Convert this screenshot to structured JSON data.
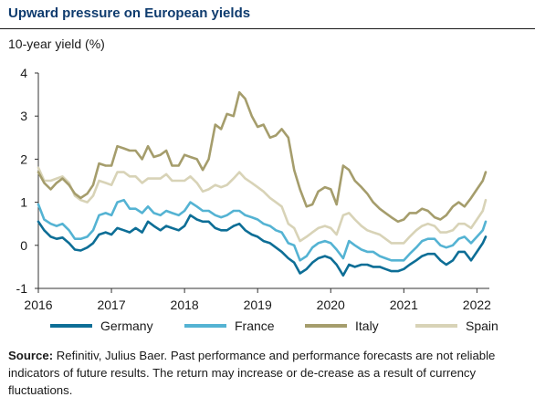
{
  "title": "Upward pressure on European yields",
  "source": {
    "label": "Source:",
    "text": " Refinitiv, Julius Baer. Past performance and performance forecasts are not reliable indicators of future results. The return may increase or de-crease as a result of currency fluctuations."
  },
  "chart_data": {
    "type": "line",
    "ylabel": "10-year yield (%)",
    "ylim": [
      -1,
      4
    ],
    "xlim": [
      2016.0,
      2022.17
    ],
    "xticks": [
      "2016",
      "2017",
      "2018",
      "2019",
      "2020",
      "2021",
      "2022"
    ],
    "yticks": [
      "4",
      "3",
      "2",
      "1",
      "0",
      "-1"
    ],
    "legend_position": "bottom",
    "grid": false,
    "series": [
      {
        "name": "Germany",
        "color": "#0d6e96",
        "x": [
          2016.0,
          2016.08,
          2016.17,
          2016.25,
          2016.33,
          2016.42,
          2016.5,
          2016.58,
          2016.67,
          2016.75,
          2016.83,
          2016.92,
          2017.0,
          2017.08,
          2017.17,
          2017.25,
          2017.33,
          2017.42,
          2017.5,
          2017.58,
          2017.67,
          2017.75,
          2017.83,
          2017.92,
          2018.0,
          2018.08,
          2018.17,
          2018.25,
          2018.33,
          2018.42,
          2018.5,
          2018.58,
          2018.67,
          2018.75,
          2018.83,
          2018.92,
          2019.0,
          2019.08,
          2019.17,
          2019.25,
          2019.33,
          2019.42,
          2019.5,
          2019.58,
          2019.67,
          2019.75,
          2019.83,
          2019.92,
          2020.0,
          2020.08,
          2020.17,
          2020.25,
          2020.33,
          2020.42,
          2020.5,
          2020.58,
          2020.67,
          2020.75,
          2020.83,
          2020.92,
          2021.0,
          2021.08,
          2021.17,
          2021.25,
          2021.33,
          2021.42,
          2021.5,
          2021.58,
          2021.67,
          2021.75,
          2021.83,
          2021.92,
          2022.0,
          2022.08,
          2022.12
        ],
        "y": [
          0.55,
          0.35,
          0.2,
          0.15,
          0.18,
          0.05,
          -0.1,
          -0.12,
          -0.05,
          0.05,
          0.25,
          0.3,
          0.25,
          0.4,
          0.35,
          0.3,
          0.4,
          0.3,
          0.55,
          0.45,
          0.35,
          0.45,
          0.4,
          0.35,
          0.45,
          0.7,
          0.6,
          0.55,
          0.55,
          0.4,
          0.35,
          0.35,
          0.45,
          0.5,
          0.35,
          0.25,
          0.2,
          0.1,
          0.05,
          -0.05,
          -0.15,
          -0.3,
          -0.4,
          -0.65,
          -0.55,
          -0.4,
          -0.3,
          -0.25,
          -0.3,
          -0.45,
          -0.7,
          -0.45,
          -0.5,
          -0.45,
          -0.45,
          -0.5,
          -0.5,
          -0.55,
          -0.6,
          -0.6,
          -0.55,
          -0.45,
          -0.35,
          -0.25,
          -0.2,
          -0.2,
          -0.35,
          -0.45,
          -0.35,
          -0.15,
          -0.15,
          -0.35,
          -0.15,
          0.05,
          0.2
        ]
      },
      {
        "name": "France",
        "color": "#54b3d3",
        "x": [
          2016.0,
          2016.08,
          2016.17,
          2016.25,
          2016.33,
          2016.42,
          2016.5,
          2016.58,
          2016.67,
          2016.75,
          2016.83,
          2016.92,
          2017.0,
          2017.08,
          2017.17,
          2017.25,
          2017.33,
          2017.42,
          2017.5,
          2017.58,
          2017.67,
          2017.75,
          2017.83,
          2017.92,
          2018.0,
          2018.08,
          2018.17,
          2018.25,
          2018.33,
          2018.42,
          2018.5,
          2018.58,
          2018.67,
          2018.75,
          2018.83,
          2018.92,
          2019.0,
          2019.08,
          2019.17,
          2019.25,
          2019.33,
          2019.42,
          2019.5,
          2019.58,
          2019.67,
          2019.75,
          2019.83,
          2019.92,
          2020.0,
          2020.08,
          2020.17,
          2020.25,
          2020.33,
          2020.42,
          2020.5,
          2020.58,
          2020.67,
          2020.75,
          2020.83,
          2020.92,
          2021.0,
          2021.08,
          2021.17,
          2021.25,
          2021.33,
          2021.42,
          2021.5,
          2021.58,
          2021.67,
          2021.75,
          2021.83,
          2021.92,
          2022.0,
          2022.08,
          2022.12
        ],
        "y": [
          0.95,
          0.6,
          0.5,
          0.45,
          0.5,
          0.35,
          0.15,
          0.15,
          0.2,
          0.35,
          0.7,
          0.75,
          0.7,
          1.0,
          1.05,
          0.85,
          0.85,
          0.75,
          0.9,
          0.75,
          0.7,
          0.8,
          0.75,
          0.7,
          0.8,
          1.0,
          0.9,
          0.8,
          0.8,
          0.7,
          0.65,
          0.7,
          0.8,
          0.8,
          0.7,
          0.65,
          0.6,
          0.5,
          0.45,
          0.35,
          0.3,
          0.05,
          0.0,
          -0.35,
          -0.25,
          -0.05,
          0.05,
          0.1,
          0.05,
          -0.1,
          -0.3,
          0.1,
          0.0,
          -0.1,
          -0.15,
          -0.15,
          -0.25,
          -0.3,
          -0.35,
          -0.35,
          -0.35,
          -0.2,
          -0.05,
          0.1,
          0.15,
          0.15,
          0.0,
          -0.05,
          0.0,
          0.15,
          0.2,
          0.05,
          0.2,
          0.35,
          0.55
        ]
      },
      {
        "name": "Italy",
        "color": "#a59d6c",
        "x": [
          2016.0,
          2016.08,
          2016.17,
          2016.25,
          2016.33,
          2016.42,
          2016.5,
          2016.58,
          2016.67,
          2016.75,
          2016.83,
          2016.92,
          2017.0,
          2017.08,
          2017.17,
          2017.25,
          2017.33,
          2017.42,
          2017.5,
          2017.58,
          2017.67,
          2017.75,
          2017.83,
          2017.92,
          2018.0,
          2018.08,
          2018.17,
          2018.25,
          2018.33,
          2018.42,
          2018.5,
          2018.58,
          2018.67,
          2018.75,
          2018.83,
          2018.92,
          2019.0,
          2019.08,
          2019.17,
          2019.25,
          2019.33,
          2019.42,
          2019.5,
          2019.58,
          2019.67,
          2019.75,
          2019.83,
          2019.92,
          2020.0,
          2020.08,
          2020.17,
          2020.25,
          2020.33,
          2020.42,
          2020.5,
          2020.58,
          2020.67,
          2020.75,
          2020.83,
          2020.92,
          2021.0,
          2021.08,
          2021.17,
          2021.25,
          2021.33,
          2021.42,
          2021.5,
          2021.58,
          2021.67,
          2021.75,
          2021.83,
          2021.92,
          2022.0,
          2022.08,
          2022.12
        ],
        "y": [
          1.7,
          1.45,
          1.3,
          1.45,
          1.55,
          1.4,
          1.2,
          1.1,
          1.2,
          1.4,
          1.9,
          1.85,
          1.85,
          2.3,
          2.25,
          2.2,
          2.2,
          2.0,
          2.3,
          2.05,
          2.1,
          2.2,
          1.85,
          1.85,
          2.1,
          2.05,
          2.0,
          1.75,
          2.0,
          2.8,
          2.7,
          3.05,
          3.0,
          3.55,
          3.4,
          3.0,
          2.75,
          2.8,
          2.5,
          2.55,
          2.7,
          2.5,
          1.75,
          1.3,
          0.9,
          0.95,
          1.25,
          1.35,
          1.3,
          0.95,
          1.85,
          1.75,
          1.5,
          1.35,
          1.2,
          1.0,
          0.85,
          0.75,
          0.65,
          0.55,
          0.6,
          0.75,
          0.75,
          0.85,
          0.8,
          0.65,
          0.6,
          0.7,
          0.9,
          1.0,
          0.9,
          1.1,
          1.3,
          1.5,
          1.7
        ]
      },
      {
        "name": "Spain",
        "color": "#d8d3b7",
        "x": [
          2016.0,
          2016.08,
          2016.17,
          2016.25,
          2016.33,
          2016.42,
          2016.5,
          2016.58,
          2016.67,
          2016.75,
          2016.83,
          2016.92,
          2017.0,
          2017.08,
          2017.17,
          2017.25,
          2017.33,
          2017.42,
          2017.5,
          2017.58,
          2017.67,
          2017.75,
          2017.83,
          2017.92,
          2018.0,
          2018.08,
          2018.17,
          2018.25,
          2018.33,
          2018.42,
          2018.5,
          2018.58,
          2018.67,
          2018.75,
          2018.83,
          2018.92,
          2019.0,
          2019.08,
          2019.17,
          2019.25,
          2019.33,
          2019.42,
          2019.5,
          2019.58,
          2019.67,
          2019.75,
          2019.83,
          2019.92,
          2020.0,
          2020.08,
          2020.17,
          2020.25,
          2020.33,
          2020.42,
          2020.5,
          2020.58,
          2020.67,
          2020.75,
          2020.83,
          2020.92,
          2021.0,
          2021.08,
          2021.17,
          2021.25,
          2021.33,
          2021.42,
          2021.5,
          2021.58,
          2021.67,
          2021.75,
          2021.83,
          2021.92,
          2022.0,
          2022.08,
          2022.12
        ],
        "y": [
          1.8,
          1.5,
          1.5,
          1.55,
          1.6,
          1.45,
          1.15,
          1.05,
          1.0,
          1.15,
          1.5,
          1.45,
          1.4,
          1.7,
          1.7,
          1.6,
          1.6,
          1.45,
          1.55,
          1.55,
          1.55,
          1.65,
          1.5,
          1.5,
          1.5,
          1.6,
          1.45,
          1.25,
          1.3,
          1.4,
          1.35,
          1.4,
          1.55,
          1.7,
          1.55,
          1.45,
          1.35,
          1.25,
          1.1,
          1.0,
          0.9,
          0.5,
          0.4,
          0.1,
          0.2,
          0.3,
          0.4,
          0.45,
          0.4,
          0.25,
          0.7,
          0.75,
          0.6,
          0.45,
          0.35,
          0.3,
          0.25,
          0.15,
          0.05,
          0.05,
          0.05,
          0.2,
          0.35,
          0.45,
          0.5,
          0.45,
          0.3,
          0.3,
          0.35,
          0.5,
          0.5,
          0.4,
          0.6,
          0.8,
          1.05
        ]
      }
    ]
  }
}
